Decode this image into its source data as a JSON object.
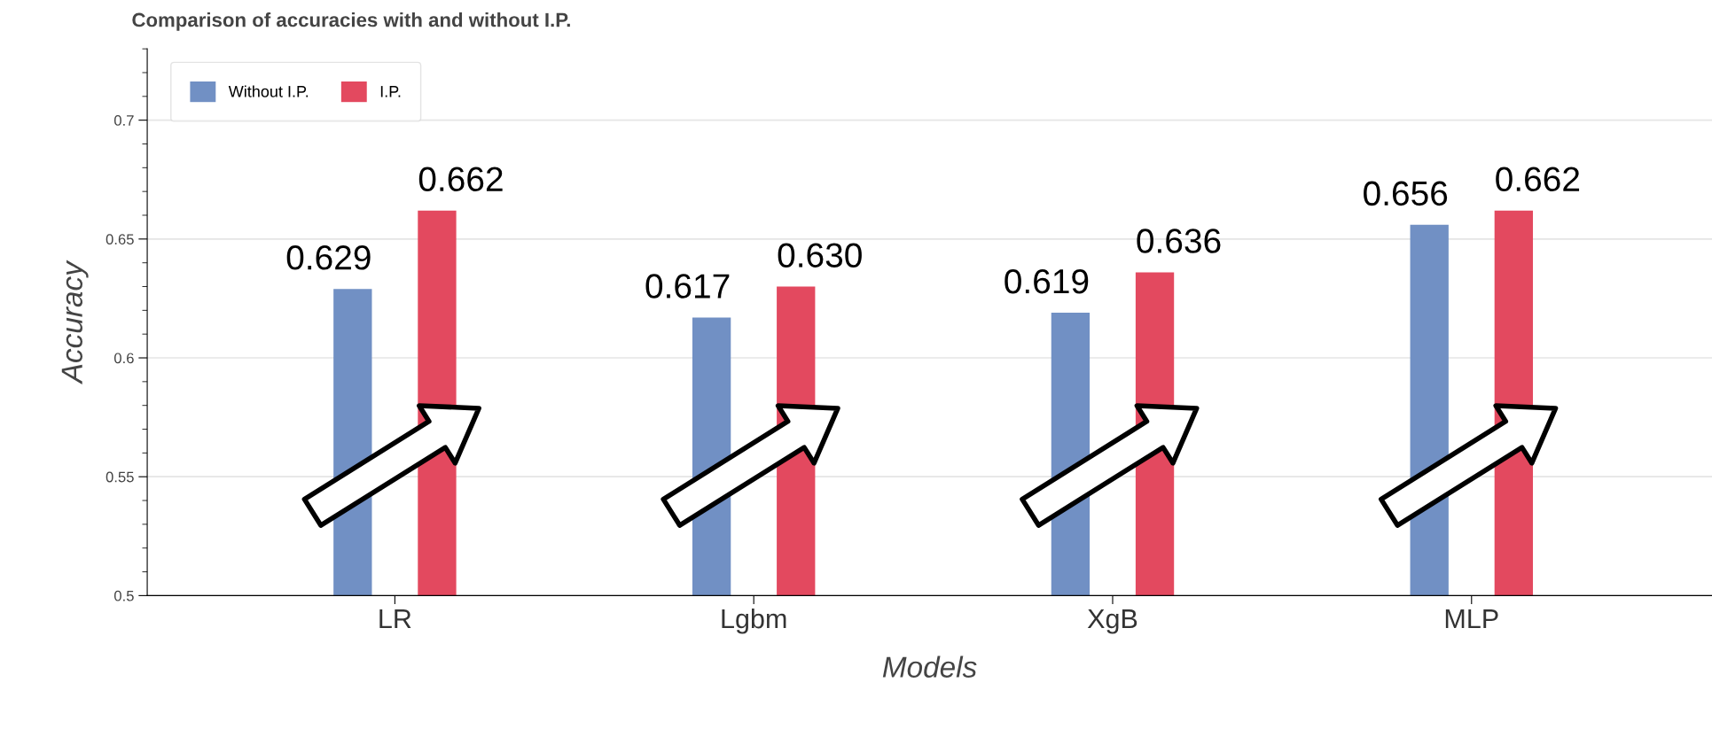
{
  "chart_data": {
    "type": "bar",
    "title": "Comparison of accuracies with and without I.P.",
    "xlabel": "Models",
    "ylabel": "Accuracy",
    "categories": [
      "LR",
      "Lgbm",
      "XgB",
      "MLP"
    ],
    "series": [
      {
        "name": "Without I.P.",
        "color": "#7190c4",
        "values": [
          0.629,
          0.617,
          0.619,
          0.656
        ],
        "value_labels": [
          "0.629",
          "0.617",
          "0.619",
          "0.656"
        ]
      },
      {
        "name": "I.P.",
        "color": "#e3495f",
        "values": [
          0.662,
          0.63,
          0.636,
          0.662
        ],
        "value_labels": [
          "0.662",
          "0.630",
          "0.636",
          "0.662"
        ]
      }
    ],
    "ylim": [
      0.5,
      0.73
    ],
    "yticks": [
      0.5,
      0.55,
      0.6,
      0.65,
      0.7
    ],
    "grid": "y",
    "legend": "top left"
  }
}
